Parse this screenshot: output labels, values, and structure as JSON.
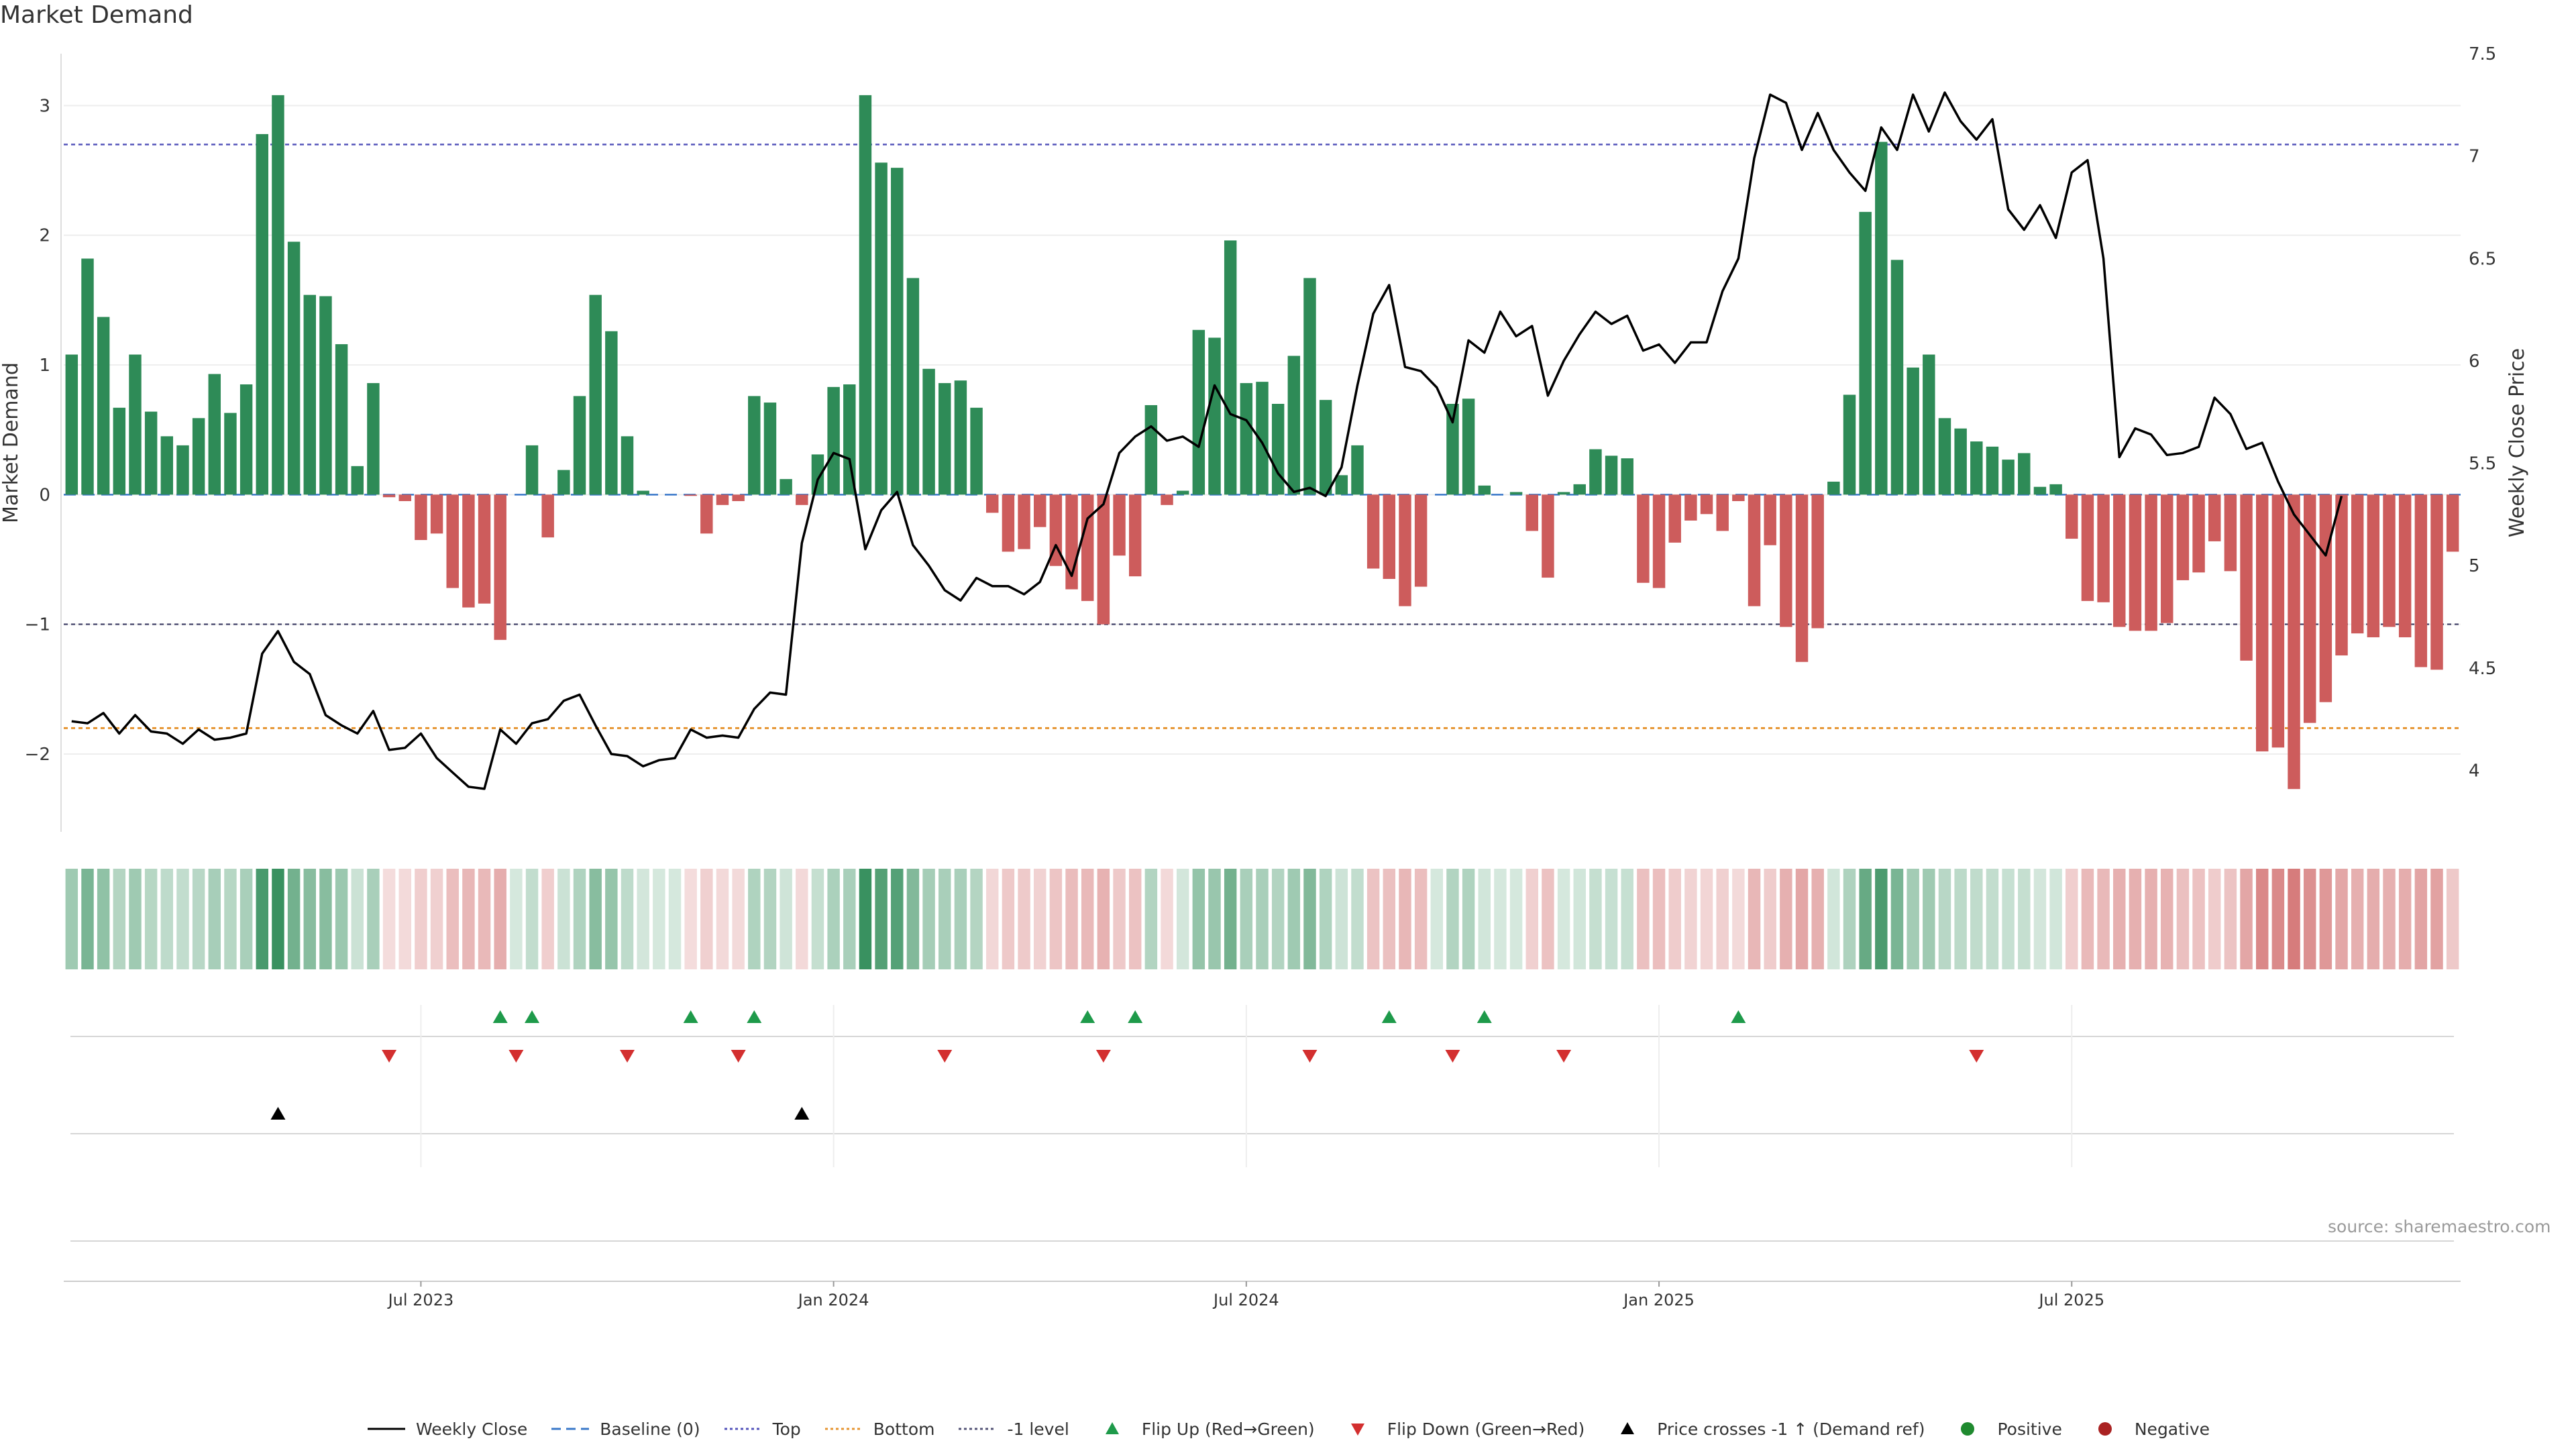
{
  "title": "Market Demand",
  "source": "source: sharemaestro.com",
  "chart_data": {
    "type": "bar+line",
    "title": "Market Demand",
    "ylabel": "Market Demand",
    "y2label": "Weekly Close Price",
    "ylim": [
      -2.6,
      3.4
    ],
    "y2lim": [
      3.7,
      7.5
    ],
    "yticks": [
      -2,
      -1,
      0,
      1,
      2,
      3
    ],
    "ytick_labels": [
      "−2",
      "−1",
      "0",
      "1",
      "2",
      "3"
    ],
    "y2ticks": [
      4,
      4.5,
      5,
      5.5,
      6,
      6.5,
      7,
      7.5
    ],
    "y2tick_labels": [
      "4",
      "4.5",
      "5",
      "5.5",
      "6",
      "6.5",
      "7",
      "7.5"
    ],
    "xtick_labels": [
      "Jul 2023",
      "Jan 2024",
      "Jul 2024",
      "Jan 2025",
      "Jul 2025"
    ],
    "xtick_weeks": [
      22,
      48,
      74,
      100,
      126
    ],
    "reference_lines": {
      "top": 2.7,
      "bottom": -1.8,
      "minus_one": -1,
      "baseline": 0
    },
    "demand": [
      1.08,
      1.82,
      1.37,
      0.67,
      1.08,
      0.64,
      0.45,
      0.38,
      0.59,
      0.93,
      0.63,
      0.85,
      2.78,
      3.08,
      1.95,
      1.54,
      1.53,
      1.16,
      0.22,
      0.86,
      -0.02,
      -0.05,
      -0.35,
      -0.3,
      -0.72,
      -0.87,
      -0.84,
      -1.12,
      0.0,
      0.38,
      -0.33,
      0.19,
      0.76,
      1.54,
      1.26,
      0.45,
      0.03,
      0.0,
      0.0,
      -0.01,
      -0.3,
      -0.08,
      -0.05,
      0.76,
      0.71,
      0.12,
      -0.08,
      0.31,
      0.83,
      0.85,
      3.08,
      2.56,
      2.52,
      1.67,
      0.97,
      0.86,
      0.88,
      0.67,
      -0.14,
      -0.44,
      -0.42,
      -0.25,
      -0.55,
      -0.73,
      -0.82,
      -1.0,
      -0.47,
      -0.63,
      0.69,
      -0.08,
      0.03,
      1.27,
      1.21,
      1.96,
      0.86,
      0.87,
      0.7,
      1.07,
      1.67,
      0.73,
      0.15,
      0.38,
      -0.57,
      -0.65,
      -0.86,
      -0.71,
      0.0,
      0.7,
      0.74,
      0.07,
      0.0,
      0.02,
      -0.28,
      -0.64,
      0.02,
      0.08,
      0.35,
      0.3,
      0.28,
      -0.68,
      -0.72,
      -0.37,
      -0.2,
      -0.15,
      -0.28,
      -0.05,
      -0.86,
      -0.39,
      -1.02,
      -1.29,
      -1.03,
      0.1,
      0.77,
      2.18,
      2.72,
      1.81,
      0.98,
      1.08,
      0.59,
      0.51,
      0.41,
      0.37,
      0.27,
      0.32,
      0.06,
      0.08,
      -0.34,
      -0.82,
      -0.83,
      -1.02,
      -1.05,
      -1.05,
      -0.99,
      -0.66,
      -0.6,
      -0.36,
      -0.59,
      -1.28,
      -1.98,
      -1.95,
      -2.27,
      -1.76,
      -1.6,
      -1.24,
      -1.07,
      -1.1,
      -1.02,
      -1.1,
      -1.33,
      -1.35,
      -0.44
    ],
    "weekly_close": [
      4.24,
      4.23,
      4.28,
      4.18,
      4.27,
      4.19,
      4.18,
      4.13,
      4.2,
      4.15,
      4.16,
      4.18,
      4.57,
      4.68,
      4.53,
      4.47,
      4.27,
      4.22,
      4.18,
      4.29,
      4.1,
      4.11,
      4.18,
      4.06,
      3.99,
      3.92,
      3.91,
      4.2,
      4.13,
      4.23,
      4.25,
      4.34,
      4.37,
      4.22,
      4.08,
      4.07,
      4.02,
      4.05,
      4.06,
      4.2,
      4.16,
      4.17,
      4.16,
      4.3,
      4.38,
      4.37,
      5.11,
      5.42,
      5.55,
      5.52,
      5.08,
      5.27,
      5.36,
      5.1,
      5.0,
      4.88,
      4.83,
      4.94,
      4.9,
      4.9,
      4.86,
      4.92,
      5.1,
      4.95,
      5.23,
      5.3,
      5.55,
      5.63,
      5.68,
      5.61,
      5.63,
      5.58,
      5.88,
      5.74,
      5.71,
      5.6,
      5.45,
      5.36,
      5.38,
      5.34,
      5.48,
      5.88,
      6.23,
      6.37,
      5.97,
      5.95,
      5.87,
      5.7,
      6.1,
      6.04,
      6.24,
      6.12,
      6.17,
      5.83,
      6.0,
      6.13,
      6.24,
      6.18,
      6.22,
      6.05,
      6.08,
      5.99,
      6.09,
      6.09,
      6.34,
      6.5,
      6.99,
      7.3,
      7.26,
      7.03,
      7.21,
      7.03,
      6.92,
      6.83,
      7.14,
      7.03,
      7.3,
      7.12,
      7.31,
      7.17,
      7.08,
      7.18,
      6.74,
      6.64,
      6.76,
      6.6,
      6.92,
      6.98,
      6.5,
      5.53,
      5.67,
      5.64,
      5.54,
      5.55,
      5.58,
      5.82,
      5.74,
      5.57,
      5.6,
      5.41,
      5.25,
      5.15,
      5.05,
      5.34
    ],
    "flip_up_weeks": [
      27,
      29,
      39,
      43,
      64,
      67,
      83,
      89,
      105
    ],
    "flip_down_weeks": [
      20,
      28,
      35,
      42,
      55,
      65,
      78,
      87,
      94,
      120
    ],
    "price_cross_weeks": [
      13,
      46
    ],
    "legend": [
      "Weekly Close",
      "Baseline (0)",
      "Top",
      "Bottom",
      "-1 level",
      "Flip Up (Red→Green)",
      "Flip Down (Green→Red)",
      "Price crosses -1 ↑ (Demand ref)",
      "Positive",
      "Negative"
    ]
  },
  "colors": {
    "positive": "#2e8b57",
    "negative": "#cd5c5c",
    "price": "#000000",
    "top": "#5555bb",
    "bottom": "#e69532",
    "minus_one": "#555577",
    "flip_up": "#1e9a4a",
    "flip_down": "#d32f2f",
    "positive_dot": "#1f8a2f",
    "negative_dot": "#aa2222"
  }
}
